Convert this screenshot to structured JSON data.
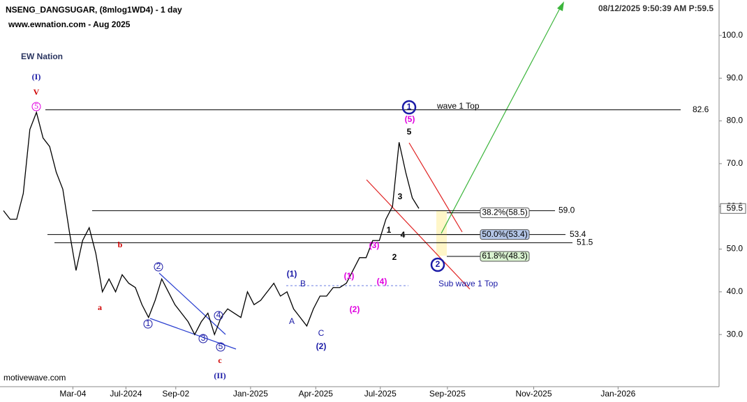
{
  "chart_data": {
    "type": "line",
    "title": "NSENG_DANGSUGAR, (8mlog1WD4) - 1 day",
    "subtitle": "www.ewnation.com  - Aug 2025",
    "timestamp": "08/12/2025 9:50:39 AM  P:59.5",
    "logo": "EW Nation",
    "footer": "motivewave.com",
    "color": "#000000",
    "values": [
      59,
      57,
      57,
      63,
      78,
      82,
      76,
      74,
      68,
      64,
      54,
      45,
      52,
      55,
      49,
      40,
      43,
      40,
      44,
      42,
      41,
      37,
      34,
      38,
      43,
      40,
      37,
      35,
      33,
      30,
      33,
      35,
      30,
      34,
      36,
      35,
      34,
      40,
      37,
      38,
      40,
      42,
      39,
      40,
      36,
      34,
      32,
      36,
      39,
      39,
      41,
      41,
      42,
      45,
      48,
      48,
      52,
      52,
      57,
      60,
      75,
      68,
      62,
      59.5
    ],
    "last_price": 59.5,
    "xlim": [
      -0.5,
      112
    ],
    "xticks": [
      {
        "value": 10.9,
        "label": "Mar-04"
      },
      {
        "value": 19.2,
        "label": "Jul-2024"
      },
      {
        "value": 27,
        "label": "Sep-02"
      },
      {
        "value": 38.7,
        "label": "Jan-2025"
      },
      {
        "value": 48.9,
        "label": "Apr-2025"
      },
      {
        "value": 59,
        "label": "Jul-2025"
      },
      {
        "value": 69.5,
        "label": "Sep-2025"
      },
      {
        "value": 83,
        "label": "Nov-2025"
      },
      {
        "value": 96.2,
        "label": "Jan-2026"
      }
    ],
    "ylim": [
      17.8,
      108.3
    ],
    "yticks": [
      {
        "value": 30,
        "label": "30.0"
      },
      {
        "value": 40,
        "label": "40.0"
      },
      {
        "value": 50,
        "label": "50.0"
      },
      {
        "value": 60,
        "label": "60.0"
      },
      {
        "value": 70,
        "label": "70.0"
      },
      {
        "value": 80,
        "label": "80.0"
      },
      {
        "value": 90,
        "label": "90.0"
      },
      {
        "value": 100,
        "label": "100.0"
      }
    ],
    "levels": [
      82.6,
      {
        "value": 59,
        "label": "59.0"
      },
      53.4,
      51.5
    ],
    "fib_levels": [
      {
        "label": "38.2%(58.5)",
        "value": 58.5,
        "color": "#ffffff"
      },
      {
        "label": "50.0%(53.4)",
        "value": 53.4,
        "color": "#b4c6e7"
      },
      {
        "label": "61.8%(48.3)",
        "value": 48.3,
        "color": "#d9f2d0"
      }
    ],
    "annotations": [
      {
        "text": "(I)",
        "color": "#1a1aa6"
      },
      {
        "text": "V",
        "color": "#d00000"
      },
      {
        "text": "5",
        "color": "#e000e0"
      },
      {
        "text": "a",
        "color": "#d00000"
      },
      {
        "text": "b",
        "color": "#d00000"
      },
      {
        "text": "c",
        "color": "#d00000"
      },
      {
        "text": "(II)",
        "color": "#1a1aa6"
      },
      {
        "text": "1",
        "color": "#1a1aa6"
      },
      {
        "text": "2",
        "color": "#1a1aa6"
      },
      {
        "text": "3",
        "color": "#1a1aa6"
      },
      {
        "text": "4",
        "color": "#1a1aa6"
      },
      {
        "text": "5",
        "color": "#1a1aa6"
      },
      {
        "text": "(1)",
        "color": "#1a1aa6"
      },
      {
        "text": "A",
        "color": "#1a1aa6"
      },
      {
        "text": "B",
        "color": "#1a1aa6"
      },
      {
        "text": "C",
        "color": "#1a1aa6"
      },
      {
        "text": "(2)",
        "color": "#1a1aa6"
      },
      {
        "text": "(1)",
        "color": "#e000e0"
      },
      {
        "text": "(2)",
        "color": "#e000e0"
      },
      {
        "text": "(3)",
        "color": "#e000e0"
      },
      {
        "text": "(4)",
        "color": "#e000e0"
      },
      {
        "text": "1",
        "color": "#000000"
      },
      {
        "text": "2",
        "color": "#000000"
      },
      {
        "text": "3",
        "color": "#000000"
      },
      {
        "text": "4",
        "color": "#000000"
      },
      {
        "text": "5",
        "color": "#000000"
      },
      {
        "text": "(5)",
        "color": "#e000e0"
      },
      {
        "text": "1",
        "color": "#1a1aa6"
      },
      {
        "text": "wave 1 Top",
        "color": "#000000"
      },
      {
        "text": "2",
        "color": "#1a1aa6"
      },
      {
        "text": "Sub wave 1 Top",
        "color": "#1a1aa6"
      }
    ]
  }
}
